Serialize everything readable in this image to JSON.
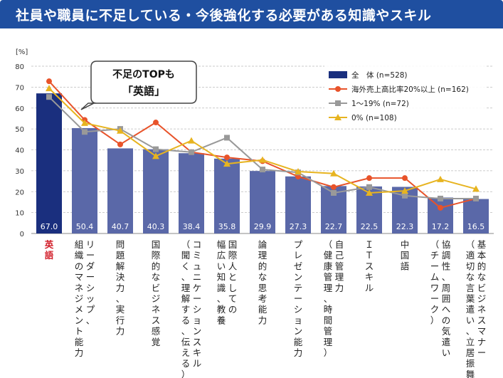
{
  "title": "社員や職員に不足している・今後強化する必要がある知識やスキル",
  "chart_data": {
    "type": "bar",
    "unit_label": "[%]",
    "ylim": [
      0,
      80
    ],
    "yticks": [
      0,
      10,
      20,
      30,
      40,
      50,
      60,
      70,
      80
    ],
    "categories": [
      {
        "lines": [
          "英語"
        ]
      },
      {
        "lines": [
          "リーダーシップ、",
          "組織のマネジメント能力"
        ]
      },
      {
        "lines": [
          "問題解決力、実行力"
        ]
      },
      {
        "lines": [
          "国際的なビジネス感覚"
        ]
      },
      {
        "lines": [
          "コミュニケーションスキル",
          "（聞く、理解する、伝える）"
        ]
      },
      {
        "lines": [
          "国際人としての",
          "幅広い知識、教養"
        ]
      },
      {
        "lines": [
          "論理的な思考能力"
        ]
      },
      {
        "lines": [
          "プレゼンテーション能力"
        ]
      },
      {
        "lines": [
          "自己管理力",
          "（健康管理、時間管理）"
        ]
      },
      {
        "lines": [
          "ＩＴスキル"
        ]
      },
      {
        "lines": [
          "中国語"
        ]
      },
      {
        "lines": [
          "協調性、周囲への気遣い",
          "（チームワーク）"
        ]
      },
      {
        "lines": [
          "基本的なビジネスマナー",
          "（適切な言葉遣い、立居振舞）"
        ]
      }
    ],
    "bar_series": {
      "name": "全　体 (n=528)",
      "color_first": "#1a2f7e",
      "color": "#5a68a8",
      "values": [
        67.0,
        50.4,
        40.7,
        40.3,
        38.4,
        35.8,
        29.9,
        27.3,
        22.7,
        22.5,
        22.3,
        17.2,
        16.5
      ],
      "labels": [
        "67.0",
        "50.4",
        "40.7",
        "40.3",
        "38.4",
        "35.8",
        "29.9",
        "27.3",
        "22.7",
        "22.5",
        "22.3",
        "17.2",
        "16.5"
      ]
    },
    "line_series": [
      {
        "name": "海外売上高比率20%以上 (n=162)",
        "color": "#e8532a",
        "marker": "circle",
        "values": [
          72.8,
          54.3,
          42.6,
          53.1,
          38.9,
          36.4,
          34.6,
          27.2,
          22.2,
          26.5,
          26.5,
          12.3,
          16.7
        ]
      },
      {
        "name": "1～19% (n=72)",
        "color": "#999999",
        "marker": "square",
        "values": [
          65.3,
          48.6,
          50.0,
          40.3,
          38.9,
          45.8,
          30.6,
          29.2,
          19.4,
          22.2,
          18.1,
          16.7,
          16.7
        ]
      },
      {
        "name": "0% (n=108)",
        "color": "#e7b420",
        "marker": "triangle",
        "values": [
          69.4,
          52.8,
          49.1,
          37.0,
          44.4,
          33.3,
          35.2,
          29.6,
          28.7,
          19.4,
          20.4,
          25.9,
          21.3
        ]
      }
    ],
    "callout": {
      "line1": "不足のTOPも",
      "line2": "「英語」"
    },
    "highlight_color": "#d2202b"
  }
}
